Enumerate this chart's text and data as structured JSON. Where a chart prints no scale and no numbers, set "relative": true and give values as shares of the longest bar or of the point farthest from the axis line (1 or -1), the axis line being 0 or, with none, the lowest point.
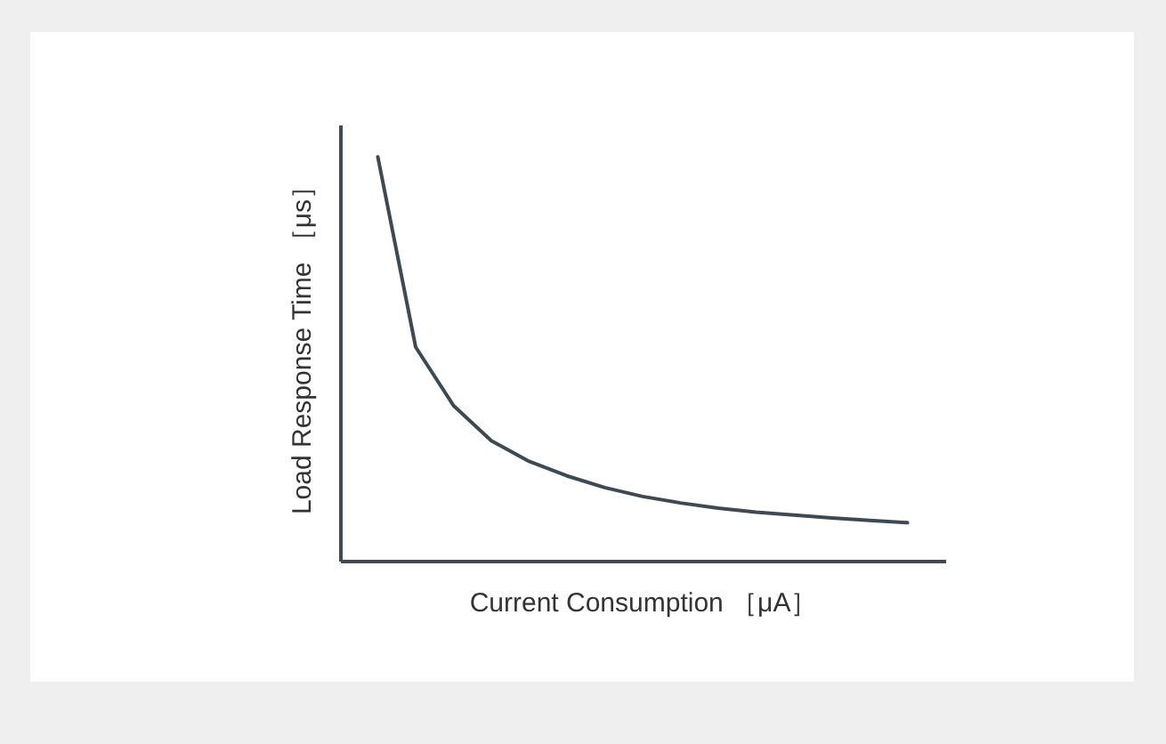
{
  "chart_data": {
    "type": "line",
    "xlabel": "Current Consumption ［μA］",
    "ylabel": "Load Response Time ［μs］",
    "relative": true,
    "categories": [
      null,
      null,
      null,
      null,
      null,
      null,
      null,
      null,
      null,
      null,
      null,
      null,
      null,
      null,
      null
    ],
    "series": [
      {
        "color": "#3d4953",
        "values": [
          1,
          0.529,
          0.384,
          0.297,
          0.246,
          0.21,
          0.181,
          0.159,
          0.143,
          0.13,
          0.12,
          0.113,
          0.106,
          0.1,
          0.094
        ]
      }
    ]
  }
}
